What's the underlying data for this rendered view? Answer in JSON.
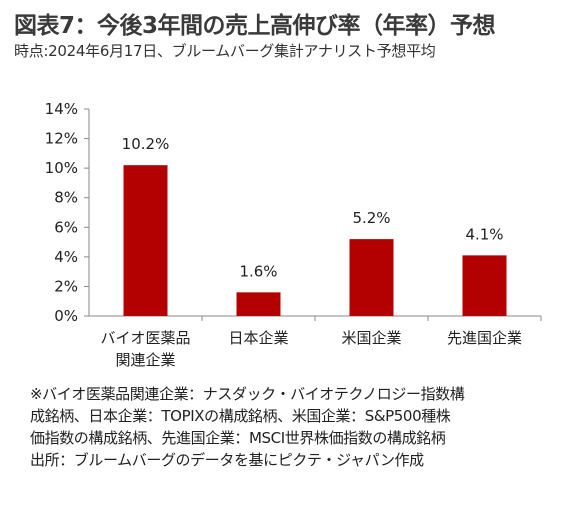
{
  "title": "図表7：今後3年間の売上高伸び率（年率）予想",
  "subtitle": "時点:2024年6月17日、ブルームバーグ集計アナリスト予想平均",
  "notes": [
    "※バイオ医薬品関連企業：ナスダック・バイオテクノロジー指数構",
    "成銘柄、日本企業：TOPIXの構成銘柄、米国企業：S&P500種株",
    "価指数の構成銘柄、先進国企業：MSCI世界株価指数の構成銘柄",
    "出所：ブルームバーグのデータを基にピクテ・ジャパン作成"
  ],
  "chart_data": {
    "type": "bar",
    "categories": [
      [
        "バイオ医薬品",
        "関連企業"
      ],
      [
        "日本企業"
      ],
      [
        "米国企業"
      ],
      [
        "先進国企業"
      ]
    ],
    "values": [
      10.2,
      1.6,
      5.2,
      4.1
    ],
    "value_labels": [
      "10.2%",
      "1.6%",
      "5.2%",
      "4.1%"
    ],
    "yticks": [
      "0%",
      "2%",
      "4%",
      "6%",
      "8%",
      "10%",
      "12%",
      "14%"
    ],
    "ylim": [
      0,
      14
    ],
    "bar_color": "#b30000",
    "grid": false,
    "legend": "none"
  }
}
